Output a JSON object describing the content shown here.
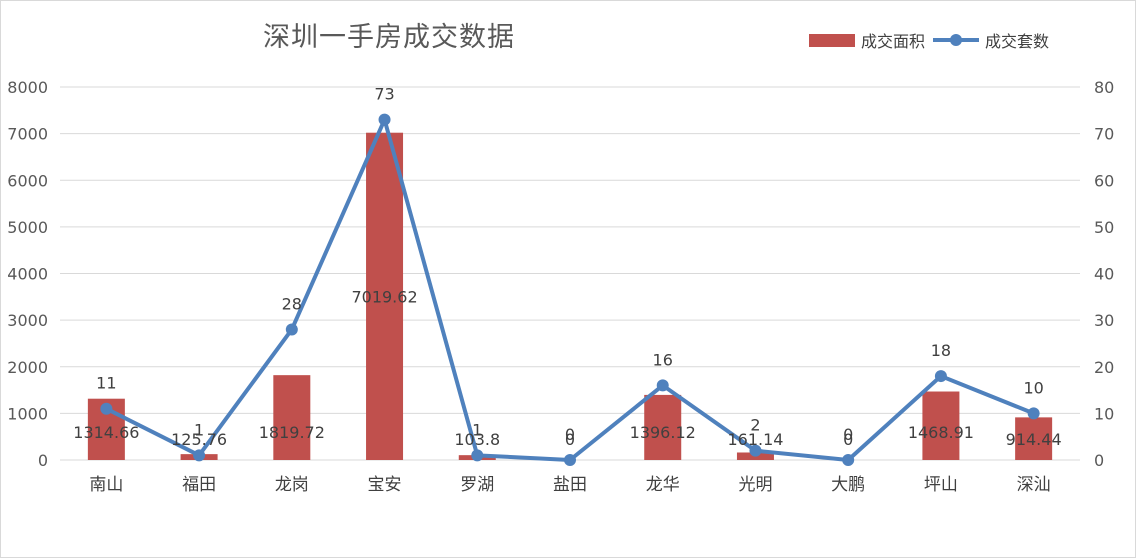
{
  "chart_data": {
    "type": "bar",
    "title": "深圳一手房成交数据",
    "categories": [
      "南山",
      "福田",
      "龙岗",
      "宝安",
      "罗湖",
      "盐田",
      "龙华",
      "光明",
      "大鹏",
      "坪山",
      "深汕"
    ],
    "series": [
      {
        "name": "成交面积",
        "type": "bar",
        "axis": "left",
        "color": "#c0504d",
        "values": [
          1314.66,
          125.76,
          1819.72,
          7019.62,
          103.8,
          0,
          1396.12,
          161.14,
          0,
          1468.91,
          914.44
        ],
        "labels": [
          "1314.66",
          "125.76",
          "1819.72",
          "7019.62",
          "103.8",
          "0",
          "1396.12",
          "161.14",
          "0",
          "1468.91",
          "914.44"
        ]
      },
      {
        "name": "成交套数",
        "type": "line",
        "axis": "right",
        "color": "#4f81bd",
        "values": [
          11,
          1,
          28,
          73,
          1,
          0,
          16,
          2,
          0,
          18,
          10
        ],
        "labels": [
          "11",
          "1",
          "28",
          "73",
          "1",
          "0",
          "16",
          "2",
          "0",
          "18",
          "10"
        ]
      }
    ],
    "y_left": {
      "min": 0,
      "max": 8000,
      "ticks": [
        "0",
        "1000",
        "2000",
        "3000",
        "4000",
        "5000",
        "6000",
        "7000",
        "8000"
      ]
    },
    "y_right": {
      "min": 0,
      "max": 80,
      "ticks": [
        "0",
        "10",
        "20",
        "30",
        "40",
        "50",
        "60",
        "70",
        "80"
      ]
    },
    "grid": true,
    "legend_position": "top-right"
  }
}
